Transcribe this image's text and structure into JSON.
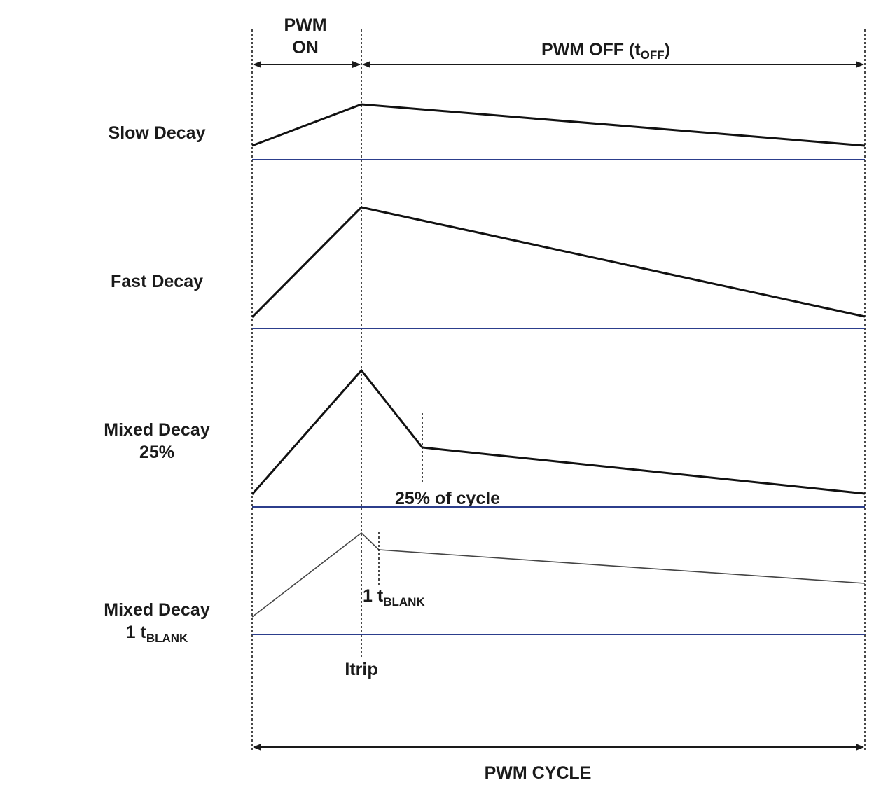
{
  "header": {
    "pwm_on_line1": "PWM",
    "pwm_on_line2": "ON",
    "pwm_off_main": "PWM OFF (t",
    "pwm_off_sub": "OFF",
    "pwm_off_close": ")"
  },
  "rows": {
    "slow": {
      "label": "Slow Decay"
    },
    "fast": {
      "label": "Fast Decay"
    },
    "mixed25": {
      "label_line1": "Mixed Decay",
      "label_line2": "25%",
      "annotation": "25% of cycle"
    },
    "mixed_blank": {
      "label_line1": "Mixed Decay",
      "label_line2_prefix": "1 t",
      "label_line2_sub": "BLANK",
      "annotation_prefix": "1 t",
      "annotation_sub": "BLANK"
    }
  },
  "itrip_label": "Itrip",
  "footer": {
    "pwm_cycle": "PWM CYCLE"
  },
  "colors": {
    "baseline": "#2c3e8c",
    "ink": "#1a1a1a"
  }
}
